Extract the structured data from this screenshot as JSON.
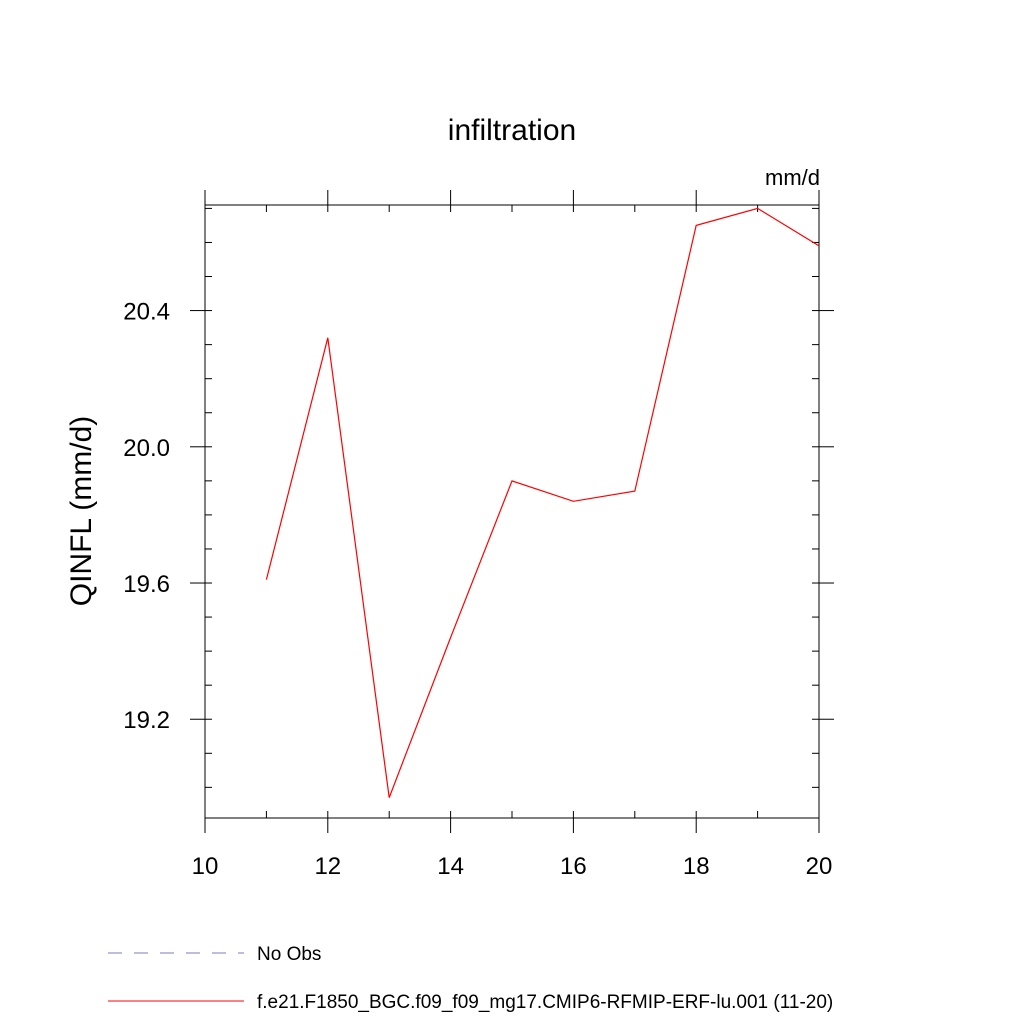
{
  "chart_data": {
    "type": "line",
    "title": "infiltration",
    "units_label": "mm/d",
    "xlabel": "",
    "ylabel": "QINFL  (mm/d)",
    "xlim": [
      10,
      20
    ],
    "ylim": [
      18.91,
      20.71
    ],
    "x_ticks": [
      10,
      12,
      14,
      16,
      18,
      20
    ],
    "x_tick_labels": [
      "10",
      "12",
      "14",
      "16",
      "18",
      "20"
    ],
    "y_ticks": [
      19.2,
      19.6,
      20.0,
      20.4
    ],
    "y_tick_labels": [
      "19.2",
      "19.6",
      "20.0",
      "20.4"
    ],
    "y_minor_step": 0.1,
    "x_minor_step": 1,
    "grid": false,
    "legend_position": "bottom",
    "series": [
      {
        "name": "No Obs",
        "color": "#7b7bb8",
        "dash": "dashed",
        "x": [],
        "y": []
      },
      {
        "name": "f.e21.F1850_BGC.f09_f09_mg17.CMIP6-RFMIP-ERF-lu.001 (11-20)",
        "color": "#ff0000",
        "dash": "solid",
        "x": [
          11,
          12,
          13,
          14,
          15,
          16,
          17,
          18,
          19,
          20
        ],
        "y": [
          19.61,
          20.32,
          18.97,
          19.44,
          19.9,
          19.84,
          19.87,
          20.65,
          20.7,
          20.59
        ]
      }
    ]
  }
}
